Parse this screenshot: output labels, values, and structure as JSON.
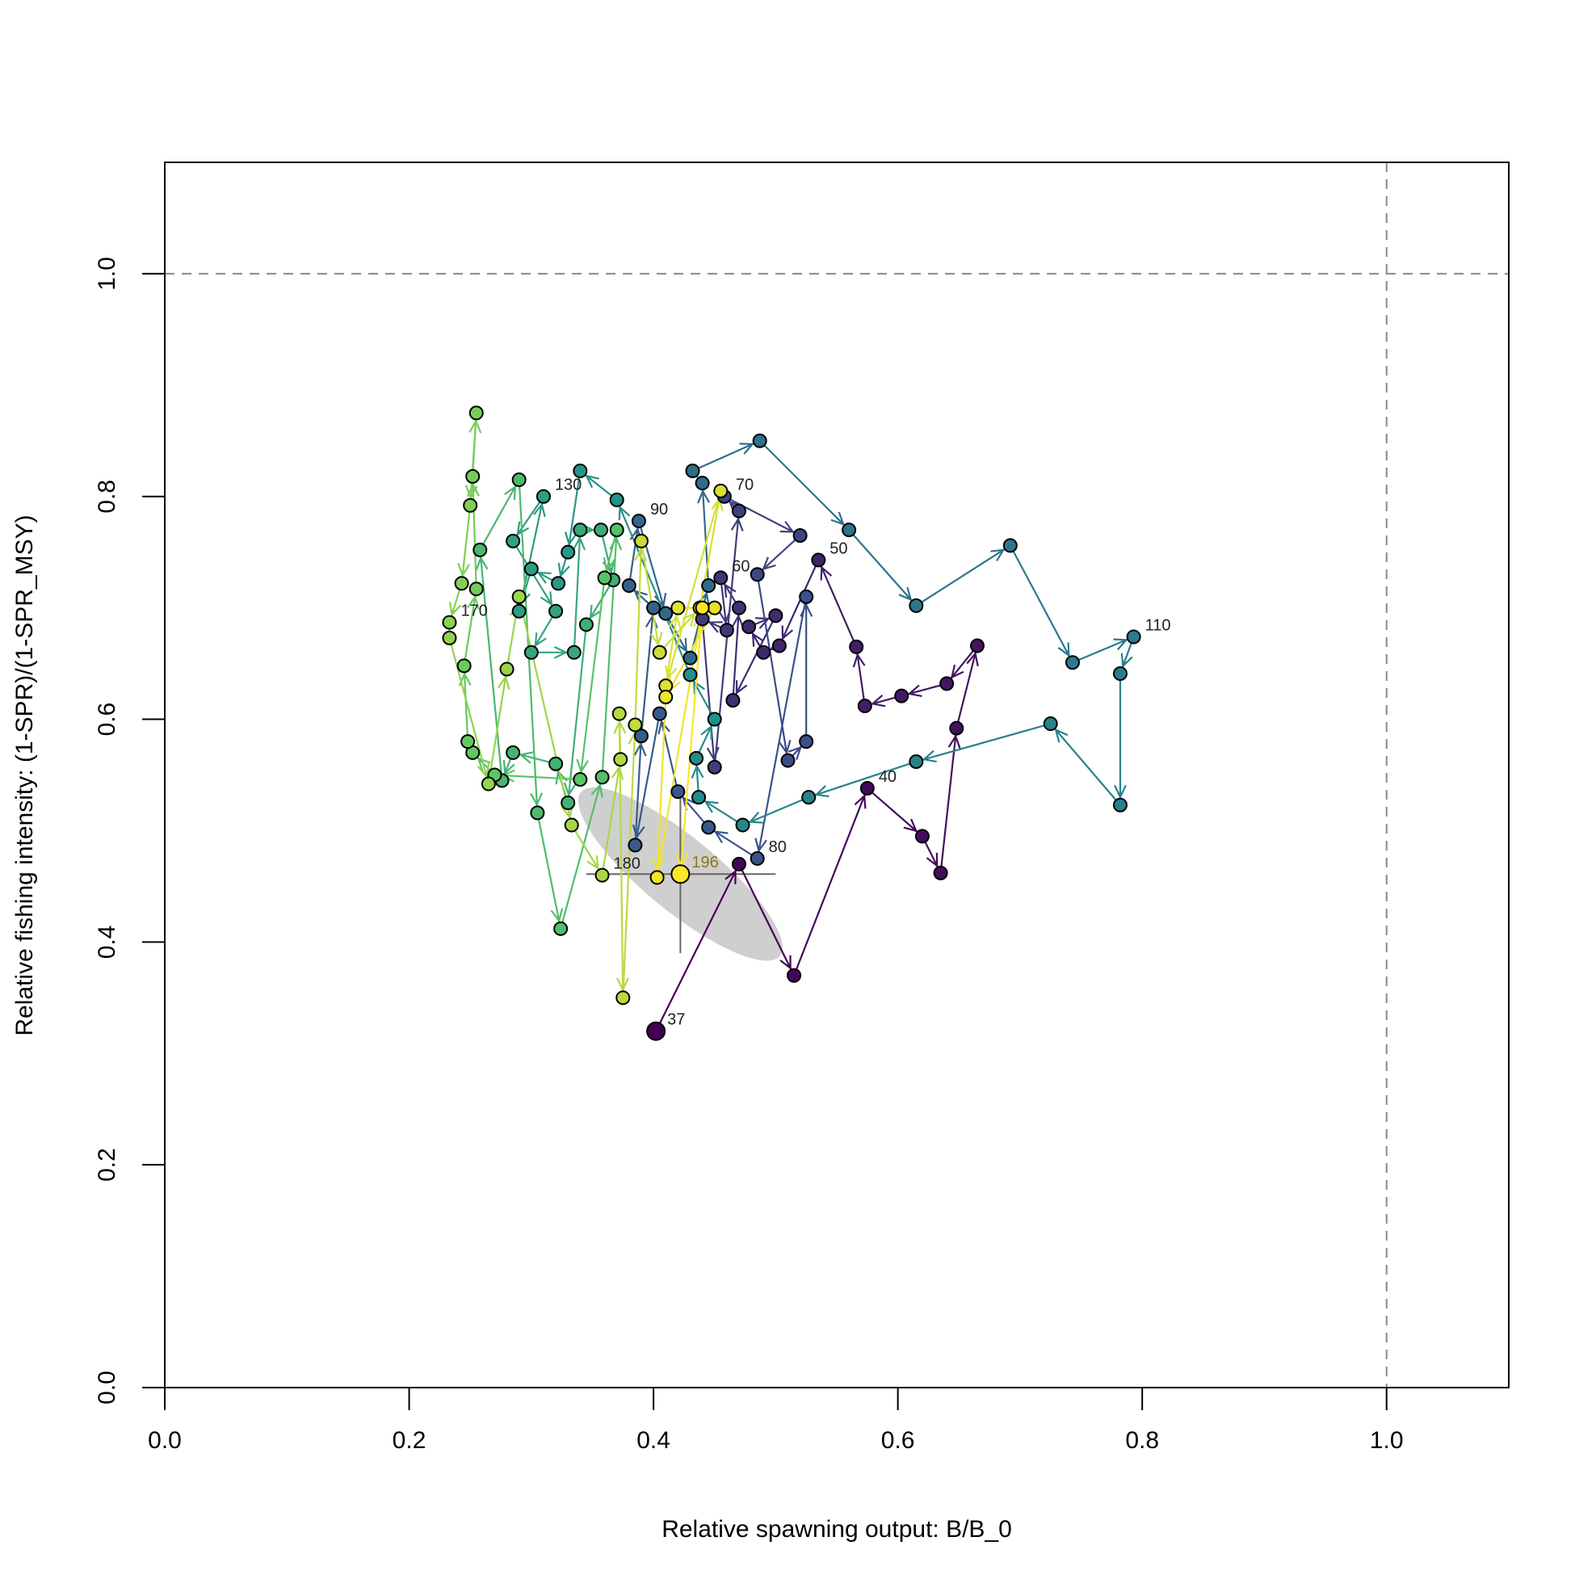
{
  "chart_data": {
    "type": "phase",
    "x_label": "Relative spawning output: B/B_0",
    "y_label": "Relative fishing intensity: (1-SPR)/(1-SPR_MSY)",
    "xlim": [
      0,
      1.1
    ],
    "ylim": [
      0,
      1.1
    ],
    "xticks": [
      {
        "value": 0,
        "label": "0.0"
      },
      {
        "value": 0.2,
        "label": "0.2"
      },
      {
        "value": 0.4,
        "label": "0.4"
      },
      {
        "value": 0.6,
        "label": "0.6"
      },
      {
        "value": 0.8,
        "label": "0.8"
      },
      {
        "value": 1,
        "label": "1.0"
      }
    ],
    "yticks": [
      {
        "value": 0,
        "label": "0.0"
      },
      {
        "value": 0.2,
        "label": "0.2"
      },
      {
        "value": 0.4,
        "label": "0.4"
      },
      {
        "value": 0.6,
        "label": "0.6"
      },
      {
        "value": 0.8,
        "label": "0.8"
      },
      {
        "value": 1,
        "label": "1.0"
      }
    ],
    "reference_lines": {
      "x": 1,
      "y": 1
    },
    "colormap": [
      "#440154",
      "#3B528B",
      "#21908C",
      "#5DC863",
      "#FDE725"
    ],
    "x": [
      0.402,
      0.47,
      0.515,
      0.575,
      0.62,
      0.635,
      0.648,
      0.665,
      0.64,
      0.603,
      0.573,
      0.566,
      0.535,
      0.503,
      0.49,
      0.478,
      0.5,
      0.465,
      0.47,
      0.455,
      0.46,
      0.44,
      0.45,
      0.47,
      0.458,
      0.52,
      0.485,
      0.51,
      0.525,
      0.525,
      0.485,
      0.445,
      0.42,
      0.405,
      0.385,
      0.39,
      0.4,
      0.38,
      0.388,
      0.41,
      0.43,
      0.445,
      0.44,
      0.432,
      0.487,
      0.56,
      0.615,
      0.692,
      0.743,
      0.793,
      0.782,
      0.782,
      0.725,
      0.615,
      0.527,
      0.473,
      0.437,
      0.435,
      0.45,
      0.43,
      0.37,
      0.34,
      0.33,
      0.322,
      0.3,
      0.29,
      0.31,
      0.285,
      0.32,
      0.3,
      0.335,
      0.34,
      0.357,
      0.367,
      0.345,
      0.33,
      0.32,
      0.285,
      0.276,
      0.258,
      0.29,
      0.305,
      0.324,
      0.358,
      0.37,
      0.36,
      0.34,
      0.27,
      0.252,
      0.248,
      0.245,
      0.255,
      0.252,
      0.255,
      0.25,
      0.243,
      0.233,
      0.233,
      0.265,
      0.28,
      0.29,
      0.333,
      0.358,
      0.373,
      0.372,
      0.375,
      0.385,
      0.39,
      0.405,
      0.438,
      0.455,
      0.41,
      0.42,
      0.45,
      0.41,
      0.403,
      0.44,
      0.422
    ],
    "values": [
      0.32,
      0.47,
      0.37,
      0.538,
      0.495,
      0.462,
      0.592,
      0.666,
      0.632,
      0.621,
      0.612,
      0.665,
      0.743,
      0.666,
      0.66,
      0.683,
      0.693,
      0.617,
      0.7,
      0.727,
      0.68,
      0.69,
      0.557,
      0.787,
      0.8,
      0.765,
      0.73,
      0.563,
      0.58,
      0.71,
      0.475,
      0.503,
      0.535,
      0.605,
      0.487,
      0.585,
      0.7,
      0.72,
      0.778,
      0.695,
      0.655,
      0.72,
      0.812,
      0.823,
      0.85,
      0.77,
      0.702,
      0.756,
      0.651,
      0.674,
      0.641,
      0.523,
      0.596,
      0.562,
      0.53,
      0.505,
      0.53,
      0.565,
      0.6,
      0.64,
      0.797,
      0.823,
      0.75,
      0.722,
      0.735,
      0.697,
      0.8,
      0.76,
      0.697,
      0.66,
      0.66,
      0.77,
      0.77,
      0.725,
      0.685,
      0.525,
      0.56,
      0.57,
      0.545,
      0.752,
      0.815,
      0.516,
      0.412,
      0.548,
      0.77,
      0.727,
      0.546,
      0.55,
      0.57,
      0.58,
      0.648,
      0.717,
      0.818,
      0.875,
      0.792,
      0.722,
      0.687,
      0.673,
      0.542,
      0.645,
      0.71,
      0.505,
      0.46,
      0.564,
      0.605,
      0.35,
      0.595,
      0.76,
      0.66,
      0.7,
      0.805,
      0.63,
      0.7,
      0.7,
      0.62,
      0.458,
      0.7,
      0.461
    ],
    "point_labels": [
      "37",
      null,
      null,
      "40",
      null,
      null,
      null,
      null,
      null,
      null,
      null,
      null,
      "50",
      null,
      null,
      null,
      null,
      null,
      null,
      "60",
      null,
      null,
      null,
      null,
      "70",
      null,
      null,
      null,
      null,
      null,
      "80",
      null,
      null,
      null,
      null,
      null,
      null,
      null,
      "90",
      null,
      null,
      null,
      null,
      null,
      null,
      null,
      null,
      null,
      null,
      "110",
      null,
      null,
      null,
      null,
      null,
      null,
      null,
      null,
      null,
      null,
      null,
      null,
      null,
      null,
      null,
      null,
      "130",
      null,
      null,
      null,
      null,
      null,
      null,
      null,
      null,
      null,
      null,
      null,
      null,
      null,
      null,
      null,
      null,
      null,
      null,
      null,
      null,
      null,
      null,
      null,
      null,
      null,
      null,
      null,
      null,
      null,
      "170",
      null,
      null,
      null,
      null,
      null,
      "180",
      null,
      null,
      null,
      null,
      null,
      null,
      null,
      null,
      null,
      null,
      null,
      null,
      null,
      null,
      "196"
    ],
    "final_point": {
      "x_interval": [
        0.345,
        0.5
      ],
      "y_interval": [
        0.39,
        0.53
      ]
    }
  }
}
